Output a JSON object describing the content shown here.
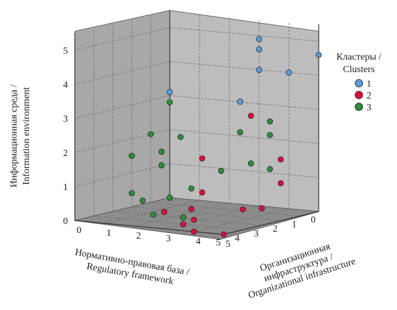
{
  "chart_data": {
    "type": "scatter",
    "dimensions": 3,
    "x_axis": {
      "label_line1": "Нормативно-правовая база /",
      "label_line2": "Regulatory framework",
      "ticks": [
        "0",
        "1",
        "2",
        "3",
        "4",
        "5"
      ],
      "range": [
        0,
        5
      ]
    },
    "y_axis": {
      "label_line1": "Организационная",
      "label_line2": "инфраструктура /",
      "label_line3": "Organizational infrastructure",
      "ticks": [
        "0",
        "1",
        "2",
        "3",
        "4",
        "5"
      ],
      "range": [
        0,
        5
      ]
    },
    "z_axis": {
      "label_line1": "Информационная среда /",
      "label_line2": "Information environment",
      "ticks": [
        "0",
        "1",
        "2",
        "3",
        "4",
        "5"
      ],
      "range": [
        0,
        5.5
      ]
    },
    "legend": {
      "title_line1": "Кластеры /",
      "title_line2": "Clusters",
      "placement": "right",
      "entries": [
        {
          "label": "1",
          "color": "#5b9bd5"
        },
        {
          "label": "2",
          "color": "#d6123e"
        },
        {
          "label": "3",
          "color": "#2e8b3a"
        }
      ]
    },
    "series": [
      {
        "name": "1",
        "color": "#5b9bd5",
        "points": [
          {
            "x": 0,
            "y": 0,
            "z": 3.1
          },
          {
            "x": 0,
            "y": 3,
            "z": 4.9
          },
          {
            "x": 0,
            "y": 3,
            "z": 4.6
          },
          {
            "x": 0,
            "y": 3,
            "z": 4.0
          },
          {
            "x": 1,
            "y": 3,
            "z": 3.2
          },
          {
            "x": 0,
            "y": 5,
            "z": 4.6
          },
          {
            "x": 0,
            "y": 4,
            "z": 4.0
          }
        ]
      },
      {
        "name": "2",
        "color": "#d6123e",
        "points": [
          {
            "x": 2,
            "y": 4,
            "z": 3.0
          },
          {
            "x": 3,
            "y": 3,
            "z": 1.8
          },
          {
            "x": 3,
            "y": 3,
            "z": 0.8
          },
          {
            "x": 2,
            "y": 5,
            "z": 1.1
          },
          {
            "x": 2,
            "y": 5,
            "z": 1.8
          },
          {
            "x": 4,
            "y": 5,
            "z": 0.6
          },
          {
            "x": 5,
            "y": 3,
            "z": 0.5
          },
          {
            "x": 5,
            "y": 4,
            "z": 0
          },
          {
            "x": 5,
            "y": 5,
            "z": 0
          },
          {
            "x": 4,
            "y": 3,
            "z": 0
          },
          {
            "x": 5,
            "y": 4,
            "z": 0.35
          },
          {
            "x": 2,
            "y": 2,
            "z": 0.1
          },
          {
            "x": 3,
            "y": 5,
            "z": 0.5
          }
        ]
      },
      {
        "name": "3",
        "color": "#2e8b3a",
        "points": [
          {
            "x": 0,
            "y": 0,
            "z": 2.8
          },
          {
            "x": 1,
            "y": 0,
            "z": 2.0
          },
          {
            "x": 2,
            "y": 0,
            "z": 1.5
          },
          {
            "x": 1,
            "y": 1,
            "z": 2.0
          },
          {
            "x": 2,
            "y": 1,
            "z": 1.3
          },
          {
            "x": 2,
            "y": 1,
            "z": 1.7
          },
          {
            "x": 1,
            "y": 3,
            "z": 2.3
          },
          {
            "x": 1,
            "y": 4,
            "z": 2.3
          },
          {
            "x": 1,
            "y": 4,
            "z": 2.7
          },
          {
            "x": 2,
            "y": 4,
            "z": 1.6
          },
          {
            "x": 2,
            "y": 3,
            "z": 1.3
          },
          {
            "x": 1,
            "y": 4,
            "z": 1.3
          },
          {
            "x": 0,
            "y": 0,
            "z": 0
          },
          {
            "x": 2,
            "y": 0,
            "z": 0.4
          },
          {
            "x": 3,
            "y": 1,
            "z": 0.4
          },
          {
            "x": 2,
            "y": 2,
            "z": 0.7
          },
          {
            "x": 4,
            "y": 2,
            "z": 0.2
          },
          {
            "x": 4,
            "y": 3,
            "z": 0.2
          }
        ]
      }
    ]
  }
}
